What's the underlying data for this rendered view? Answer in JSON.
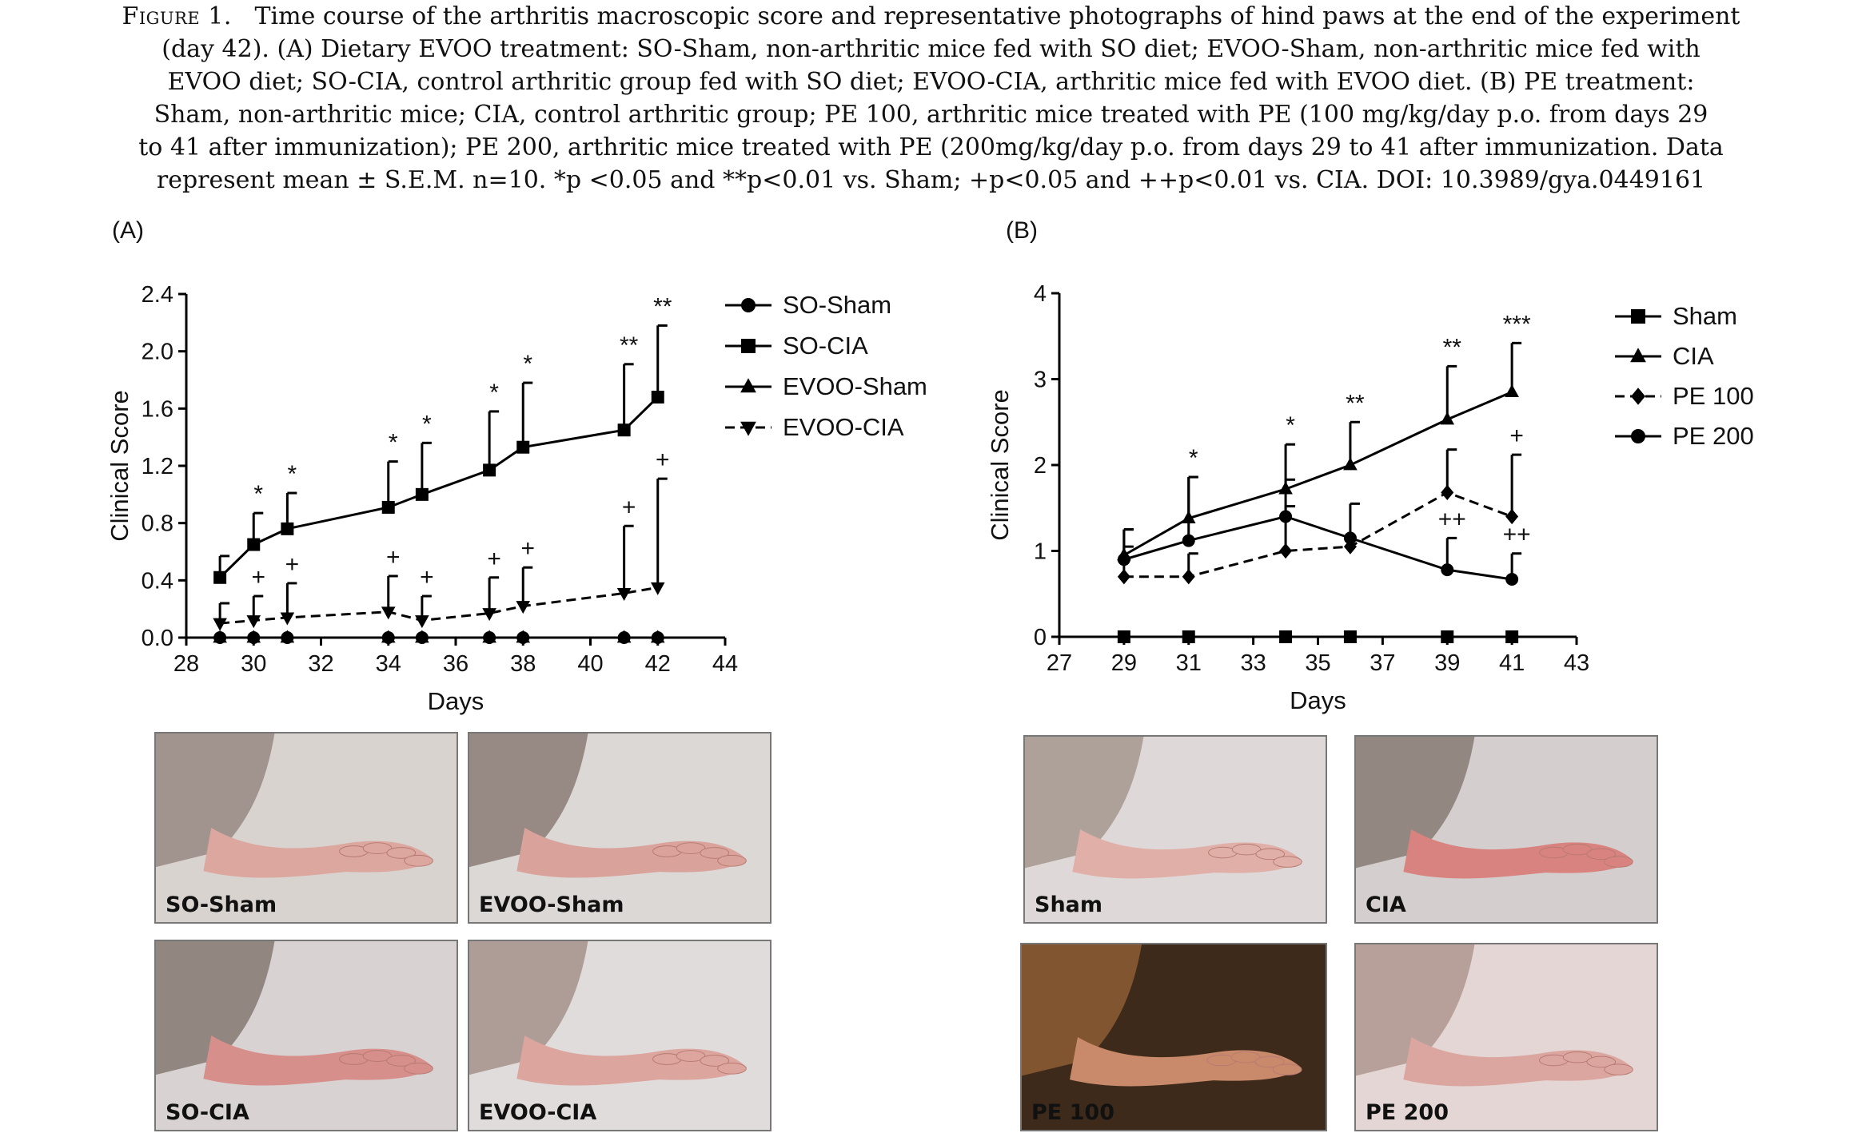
{
  "caption": {
    "prefix": "Figure 1.",
    "lines": [
      "Time course of the arthritis macroscopic score and representative photographs of hind paws at the end of the experiment",
      "(day 42). (A) Dietary EVOO treatment: SO-Sham, non-arthritic mice fed with SO diet; EVOO-Sham, non-arthritic mice fed with",
      "EVOO diet; SO-CIA, control arthritic group fed with SO diet; EVOO-CIA, arthritic mice fed with EVOO diet. (B) PE treatment:",
      "Sham, non-arthritic mice; CIA, control arthritic group; PE 100, arthritic mice treated with PE (100 mg/kg/day p.o. from days 29",
      "to 41 after immunization); PE 200, arthritic mice treated with PE (200mg/kg/day p.o. from days 29 to 41 after immunization. Data",
      "represent mean ± S.E.M. n=10. *p <0.05 and **p<0.01 vs. Sham; +p<0.05 and ++p<0.01 vs. CIA. DOI: 10.3989/gya.0449161"
    ]
  },
  "panels": {
    "a_label": "(A)",
    "b_label": "(B)"
  },
  "chart_data": [
    {
      "type": "line",
      "panel": "(A)",
      "xlabel": "Days",
      "ylabel": "Clinical Score",
      "xlim": [
        28,
        44
      ],
      "ylim": [
        0,
        2.4
      ],
      "xticks": [
        28,
        30,
        32,
        34,
        36,
        38,
        40,
        42,
        44
      ],
      "yticks": [
        0.0,
        0.4,
        0.8,
        1.2,
        1.6,
        2.0,
        2.4
      ],
      "ytick_labels": [
        "0.0",
        "0.4",
        "0.8",
        "1.2",
        "1.6",
        "2.0",
        "2.4"
      ],
      "grid": false,
      "legend": "right",
      "x": [
        29,
        30,
        31,
        34,
        35,
        37,
        38,
        41,
        42
      ],
      "series": [
        {
          "name": "SO-Sham",
          "marker": "circle",
          "dash": "solid",
          "values": [
            0,
            0,
            0,
            0,
            0,
            0,
            0,
            0,
            0
          ],
          "err": [
            0,
            0,
            0,
            0,
            0,
            0,
            0,
            0,
            0
          ]
        },
        {
          "name": "SO-CIA",
          "marker": "square",
          "dash": "solid",
          "values": [
            0.42,
            0.65,
            0.76,
            0.91,
            1.0,
            1.17,
            1.33,
            1.45,
            1.68
          ],
          "err": [
            0.15,
            0.22,
            0.25,
            0.32,
            0.36,
            0.41,
            0.45,
            0.46,
            0.5
          ],
          "annotations": [
            "",
            "*",
            "*",
            "*",
            "*",
            "*",
            "*",
            "**",
            "**"
          ]
        },
        {
          "name": "EVOO-Sham",
          "marker": "triangle-up",
          "dash": "solid",
          "values": [
            0,
            0,
            0,
            0,
            0,
            0,
            0,
            0,
            0
          ],
          "err": [
            0,
            0,
            0,
            0,
            0,
            0,
            0,
            0,
            0
          ]
        },
        {
          "name": "EVOO-CIA",
          "marker": "triangle-down",
          "dash": "dashed",
          "values": [
            0.1,
            0.12,
            0.14,
            0.18,
            0.12,
            0.17,
            0.22,
            0.31,
            0.35
          ],
          "err": [
            0.14,
            0.17,
            0.24,
            0.25,
            0.17,
            0.25,
            0.27,
            0.47,
            0.76
          ],
          "annotations": [
            "",
            "+",
            "+",
            "+",
            "+",
            "+",
            "+",
            "+",
            "+"
          ]
        }
      ]
    },
    {
      "type": "line",
      "panel": "(B)",
      "xlabel": "Days",
      "ylabel": "Clinical Score",
      "xlim": [
        27,
        43
      ],
      "ylim": [
        0,
        4
      ],
      "xticks": [
        27,
        29,
        31,
        33,
        35,
        37,
        39,
        41,
        43
      ],
      "yticks": [
        0,
        1,
        2,
        3,
        4
      ],
      "ytick_labels": [
        "0",
        "1",
        "2",
        "3",
        "4"
      ],
      "grid": false,
      "legend": "right",
      "x": [
        29,
        31,
        34,
        36,
        39,
        41
      ],
      "series": [
        {
          "name": "Sham",
          "marker": "square",
          "dash": "solid",
          "values": [
            0,
            0,
            0,
            0,
            0,
            0
          ],
          "err": [
            0,
            0,
            0,
            0,
            0,
            0
          ]
        },
        {
          "name": "CIA",
          "marker": "triangle-up",
          "dash": "solid",
          "values": [
            0.95,
            1.38,
            1.72,
            2.0,
            2.53,
            2.85
          ],
          "err": [
            0.3,
            0.48,
            0.52,
            0.5,
            0.62,
            0.57
          ],
          "annotations": [
            "",
            "*",
            "*",
            "**",
            "**",
            "***"
          ]
        },
        {
          "name": "PE 100",
          "marker": "diamond",
          "dash": "dashed",
          "values": [
            0.7,
            0.7,
            1.0,
            1.05,
            1.68,
            1.4
          ],
          "err": [
            0.35,
            0.27,
            0.83,
            0.5,
            0.5,
            0.72
          ],
          "annotations": [
            "",
            "",
            "",
            "",
            "",
            "+"
          ]
        },
        {
          "name": "PE 200",
          "marker": "circle",
          "dash": "solid",
          "values": [
            0.9,
            1.12,
            1.4,
            1.15,
            0.78,
            0.67
          ],
          "err": [
            0.35,
            0.74,
            0.12,
            0.0,
            0.37,
            0.3
          ],
          "annotations": [
            "",
            "",
            "",
            "",
            "++",
            "++"
          ]
        }
      ]
    }
  ],
  "photos": [
    {
      "label": "SO-Sham",
      "bg": "#d9d3d0",
      "paw": "#dca79f",
      "fur": "#9a8c86"
    },
    {
      "label": "EVOO-Sham",
      "bg": "#dcd8d6",
      "paw": "#d9a39b",
      "fur": "#8f817b"
    },
    {
      "label": "SO-CIA",
      "bg": "#d8d3d2",
      "paw": "#d68f8a",
      "fur": "#8b7d78"
    },
    {
      "label": "EVOO-CIA",
      "bg": "#e0dcdb",
      "paw": "#dca59e",
      "fur": "#a8968f"
    },
    {
      "label": "Sham",
      "bg": "#ded9d8",
      "paw": "#e0b0a8",
      "fur": "#a89a94"
    },
    {
      "label": "CIA",
      "bg": "#d4cfce",
      "paw": "#d8837f",
      "fur": "#8c8079"
    },
    {
      "label": "PE 100",
      "bg": "#3e2a1a",
      "paw": "#c98a6c",
      "fur": "#8a5a34"
    },
    {
      "label": "PE 200",
      "bg": "#e4d6d4",
      "paw": "#dca6a0",
      "fur": "#b39a93"
    }
  ]
}
